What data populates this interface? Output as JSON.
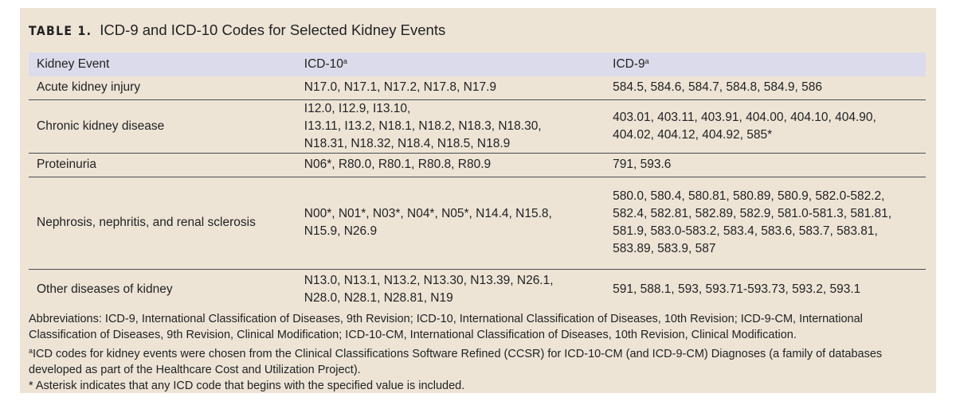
{
  "title": {
    "label": "TABLE 1.",
    "text": "ICD-9 and ICD-10 Codes for Selected Kidney Events"
  },
  "table": {
    "header": [
      {
        "text": "Kidney Event"
      },
      {
        "text": "ICD-10",
        "sup": "a"
      },
      {
        "text": "ICD-9",
        "sup": "a"
      }
    ],
    "rows": [
      [
        [
          "Acute kidney injury"
        ],
        [
          "N17.0, N17.1, N17.2, N17.8, N17.9"
        ],
        [
          "584.5, 584.6, 584.7, 584.8, 584.9, 586"
        ]
      ],
      [
        [
          "Chronic kidney disease"
        ],
        [
          "I12.0, I12.9, I13.10,",
          "I13.11, I13.2, N18.1, N18.2, N18.3, N18.30,",
          "N18.31, N18.32, N18.4, N18.5, N18.9"
        ],
        [
          "403.01, 403.11, 403.91, 404.00, 404.10, 404.90,",
          "404.02, 404.12, 404.92, 585*"
        ]
      ],
      [
        [
          "Proteinuria"
        ],
        [
          "N06*, R80.0, R80.1, R80.8, R80.9"
        ],
        [
          "791, 593.6"
        ]
      ],
      [
        [
          "Nephrosis, nephritis, and renal sclerosis"
        ],
        [
          "N00*, N01*, N03*, N04*, N05*, N14.4, N15.8,",
          "N15.9, N26.9"
        ],
        [
          "580.0, 580.4, 580.81, 580.89, 580.9, 582.0-582.2,",
          "582.4, 582.81, 582.89, 582.9, 581.0-581.3, 581.81,",
          "581.9, 583.0-583.2, 583.4, 583.6, 583.7, 583.81,",
          "583.89, 583.9, 587"
        ]
      ],
      [
        [
          "Other diseases of kidney"
        ],
        [
          "N13.0, N13.1, N13.2, N13.30, N13.39, N26.1,",
          "N28.0, N28.1, N28.81, N19"
        ],
        [
          "591, 588.1, 593, 593.71-593.73, 593.2, 593.1"
        ]
      ]
    ]
  },
  "footnotes": {
    "abbreviations": "Abbreviations: ICD-9, International Classification of Diseases, 9th Revision; ICD-10, International Classification of Diseases, 10th Revision; ICD-9-CM, International Classification of Diseases, 9th Revision, Clinical Modification; ICD-10-CM, International Classification of Diseases, 10th Revision, Clinical Modification.",
    "a": {
      "mark": "a",
      "text": "ICD codes for kidney events were chosen from the Clinical Classifications Software Refined (CCSR) for ICD-10-CM (and ICD-9-CM) Diagnoses (a family of databases developed as part of the Healthcare Cost and Utilization Project)."
    },
    "asterisk": "* Asterisk indicates that any ICD code that begins with the specified value is included."
  }
}
